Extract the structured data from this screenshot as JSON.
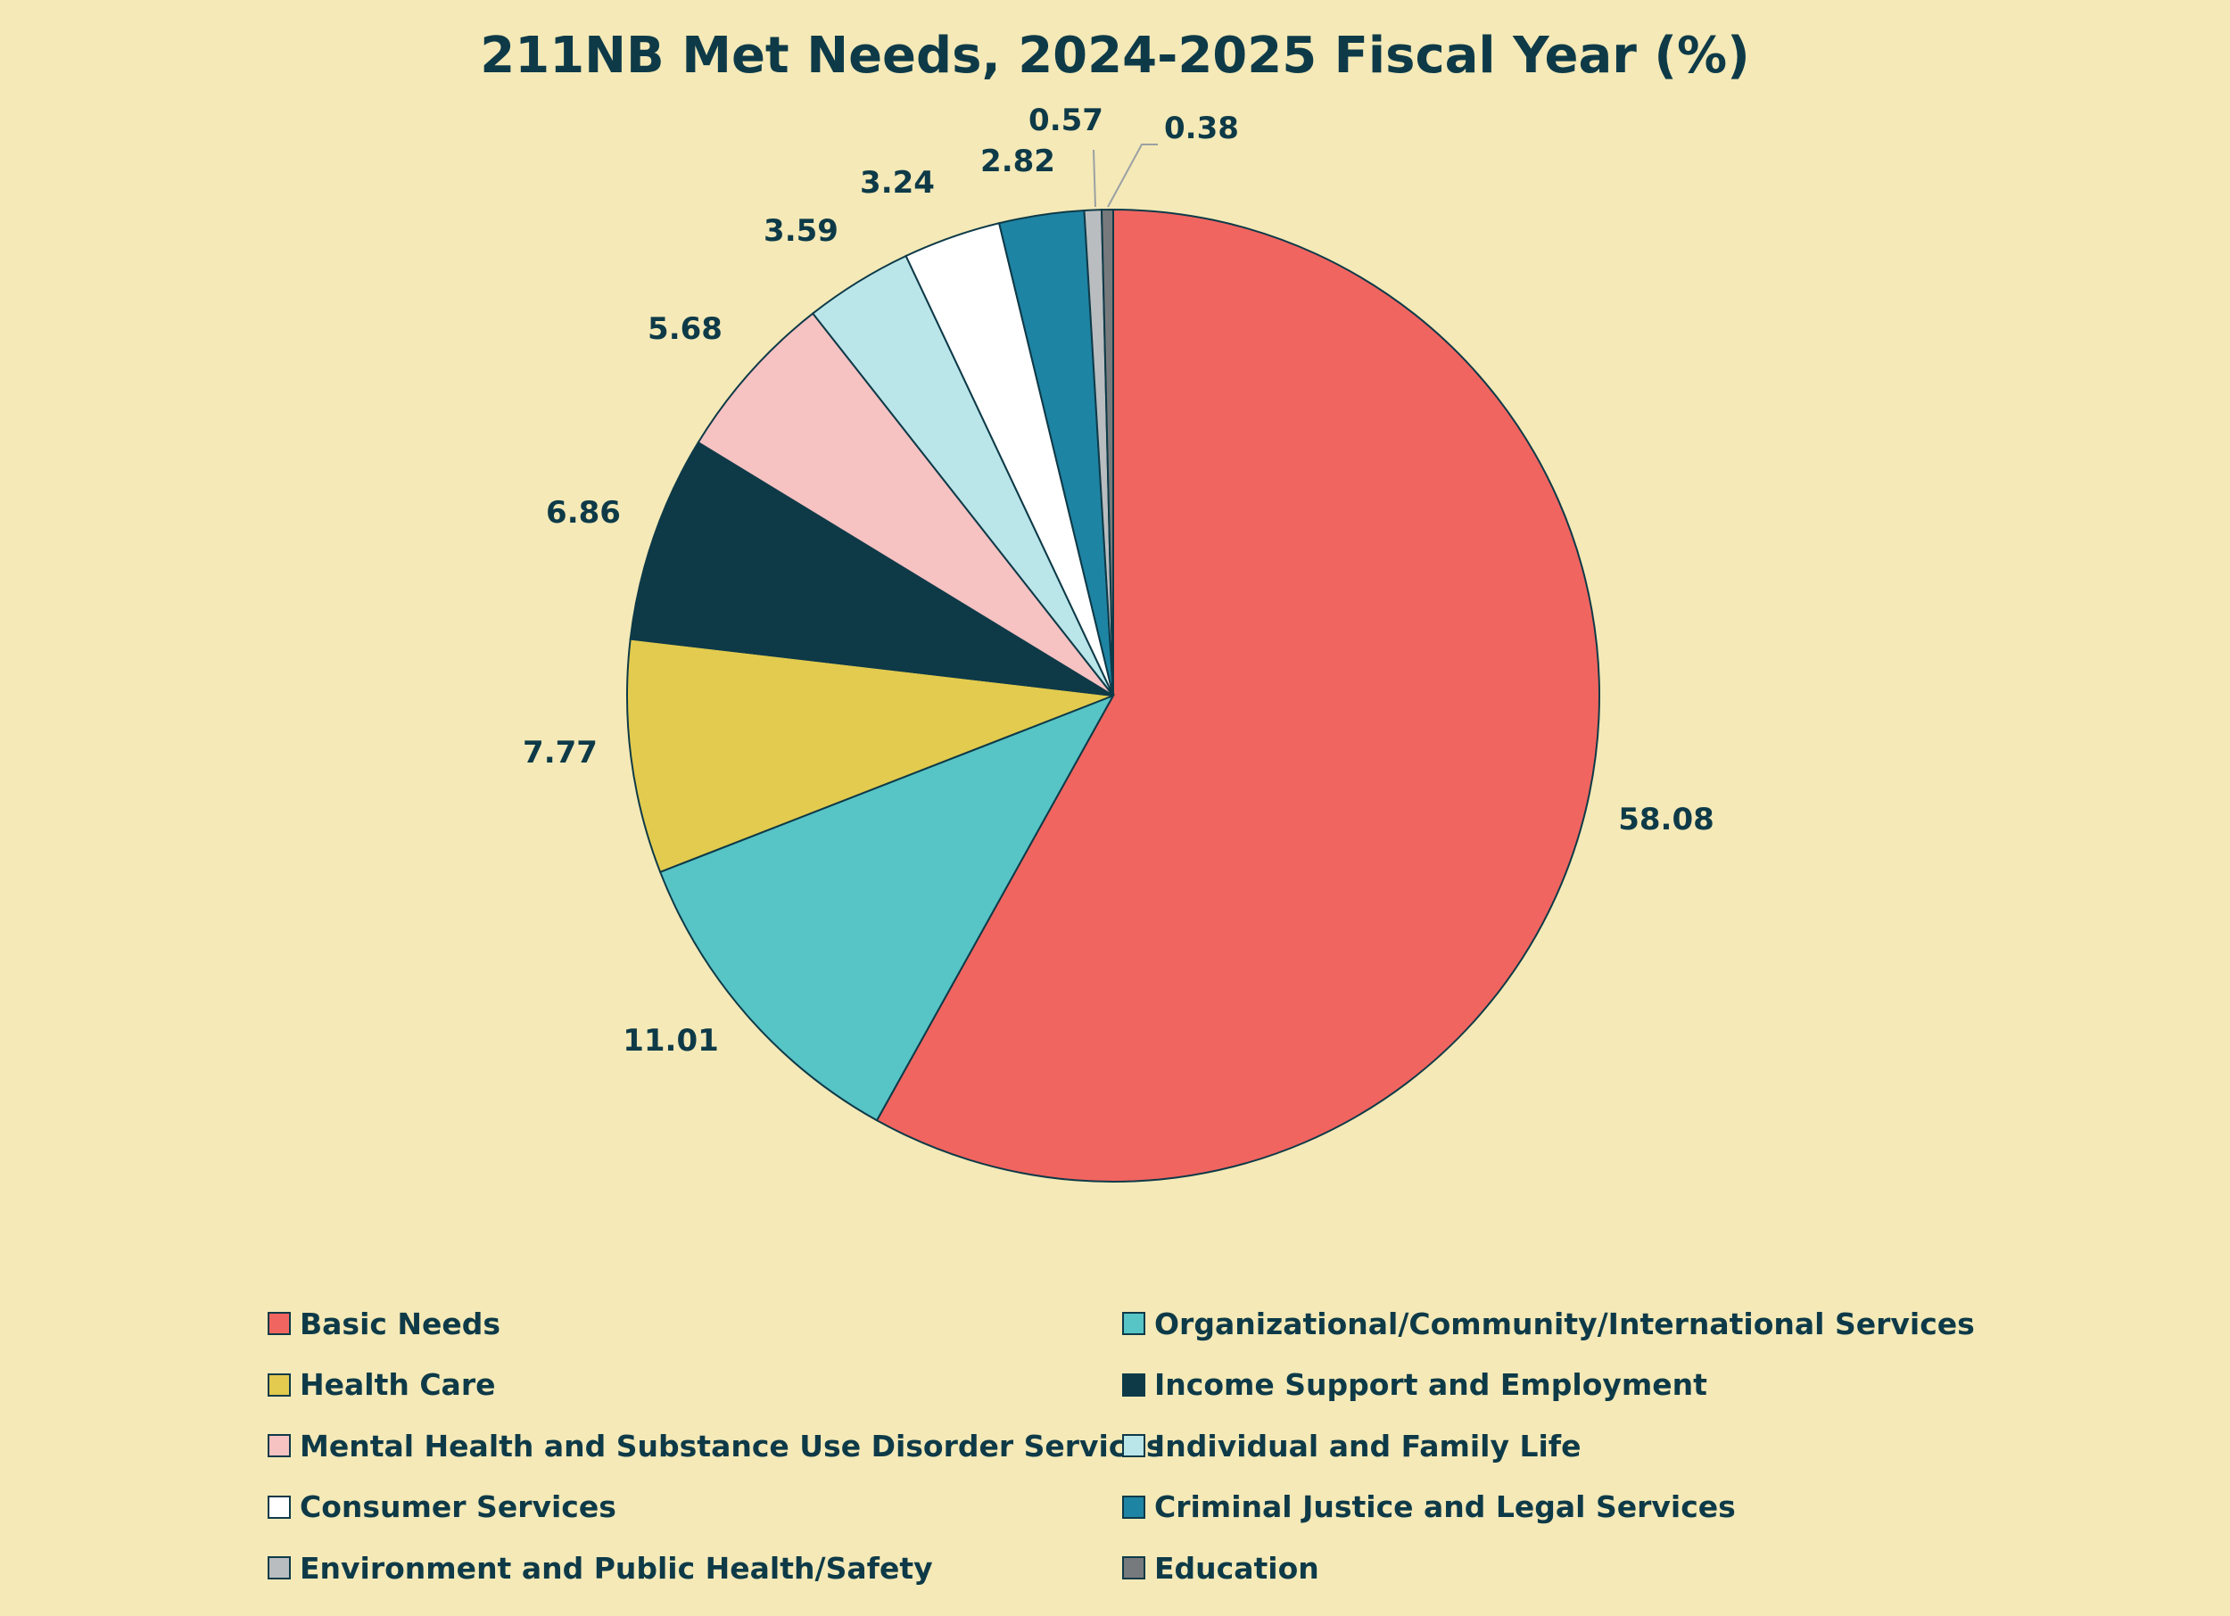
{
  "chart_data": {
    "type": "pie",
    "title": "211NB Met Needs, 2024-2025 Fiscal Year (%)",
    "legend_position": "bottom",
    "slices": [
      {
        "label": "Basic Needs",
        "value": 58.08,
        "value_label": "58.08",
        "color": "#f06560"
      },
      {
        "label": "Organizational/Community/International Services",
        "value": 11.01,
        "value_label": "11.01",
        "color": "#57c4c6"
      },
      {
        "label": "Health Care",
        "value": 7.77,
        "value_label": "7.77",
        "color": "#e2cb4e"
      },
      {
        "label": "Income Support and Employment",
        "value": 6.86,
        "value_label": "6.86",
        "color": "#0e3a48"
      },
      {
        "label": "Mental Health and Substance Use Disorder Services",
        "value": 5.68,
        "value_label": "5.68",
        "color": "#f7c2c2"
      },
      {
        "label": "Individual and Family Life",
        "value": 3.59,
        "value_label": "3.59",
        "color": "#bae6ea"
      },
      {
        "label": "Consumer Services",
        "value": 3.24,
        "value_label": "3.24",
        "color": "#ffffff"
      },
      {
        "label": "Criminal Justice and Legal Services",
        "value": 2.82,
        "value_label": "2.82",
        "color": "#1e84a4"
      },
      {
        "label": "Environment and Public Health/Safety",
        "value": 0.57,
        "value_label": "0.57",
        "color": "#b9bdc0"
      },
      {
        "label": "Education",
        "value": 0.38,
        "value_label": "0.38",
        "color": "#777a7c"
      }
    ]
  }
}
